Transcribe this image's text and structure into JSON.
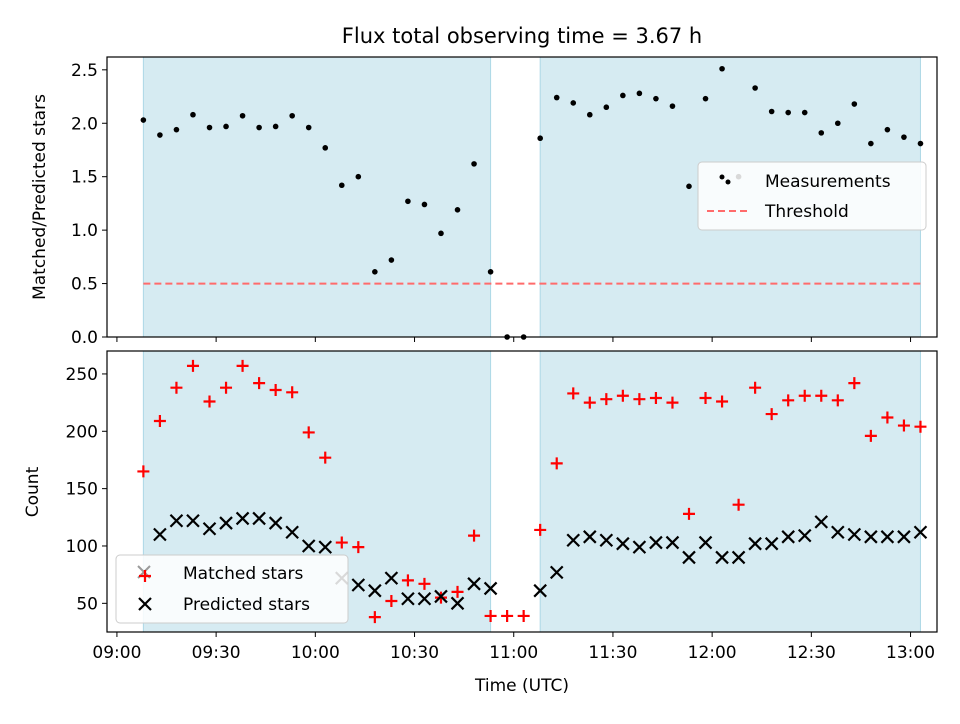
{
  "chart_data": [
    {
      "type": "scatter",
      "title": "Flux total observing time = 3.67 h",
      "xlabel": "",
      "ylabel": "Matched/Predicted stars",
      "ylim": [
        0,
        2.62
      ],
      "yticks": [
        0.0,
        0.5,
        1.0,
        1.5,
        2.0,
        2.5
      ],
      "ytick_labels": [
        "0.0",
        "0.5",
        "1.0",
        "1.5",
        "2.0",
        "2.5"
      ],
      "xlim": [
        "08:57",
        "13:08"
      ],
      "xticks": [
        "09:00",
        "09:30",
        "10:00",
        "10:30",
        "11:00",
        "11:30",
        "12:00",
        "12:30",
        "13:00"
      ],
      "shaded_spans": [
        [
          "09:08",
          "10:53"
        ],
        [
          "11:08",
          "13:03"
        ]
      ],
      "series": [
        {
          "name": "Measurements",
          "marker": "dot",
          "color": "#000000",
          "x": [
            "09:08",
            "09:13",
            "09:18",
            "09:23",
            "09:28",
            "09:33",
            "09:38",
            "09:43",
            "09:48",
            "09:53",
            "09:58",
            "10:03",
            "10:08",
            "10:13",
            "10:18",
            "10:23",
            "10:28",
            "10:33",
            "10:38",
            "10:43",
            "10:48",
            "10:53",
            "10:58",
            "11:03",
            "11:08",
            "11:13",
            "11:18",
            "11:23",
            "11:28",
            "11:33",
            "11:38",
            "11:43",
            "11:48",
            "11:53",
            "11:58",
            "12:03",
            "12:08",
            "12:13",
            "12:18",
            "12:23",
            "12:28",
            "12:33",
            "12:38",
            "12:43",
            "12:48",
            "12:53",
            "12:58",
            "13:03"
          ],
          "y": [
            2.03,
            1.89,
            1.94,
            2.08,
            1.96,
            1.97,
            2.07,
            1.96,
            1.97,
            2.07,
            1.96,
            1.77,
            1.42,
            1.5,
            0.61,
            0.72,
            1.27,
            1.24,
            0.97,
            1.19,
            1.62,
            0.61,
            0.0,
            0.0,
            1.86,
            2.24,
            2.19,
            2.08,
            2.15,
            2.26,
            2.28,
            2.23,
            2.16,
            1.41,
            2.23,
            2.51,
            1.5,
            2.33,
            2.11,
            2.1,
            2.1,
            1.91,
            2.0,
            2.18,
            1.81,
            1.94,
            1.87,
            1.81
          ]
        },
        {
          "name": "Threshold",
          "line": "dashed",
          "color": "#ff6b6b",
          "value": 0.5
        }
      ],
      "legend": "right"
    },
    {
      "type": "scatter",
      "title": "",
      "xlabel": "Time (UTC)",
      "ylabel": "Count",
      "ylim": [
        25,
        270
      ],
      "yticks": [
        50,
        100,
        150,
        200,
        250
      ],
      "ytick_labels": [
        "50",
        "100",
        "150",
        "200",
        "250"
      ],
      "xlim": [
        "08:57",
        "13:08"
      ],
      "xticks": [
        "09:00",
        "09:30",
        "10:00",
        "10:30",
        "11:00",
        "11:30",
        "12:00",
        "12:30",
        "13:00"
      ],
      "xtick_labels": [
        "09:00",
        "09:30",
        "10:00",
        "10:30",
        "11:00",
        "11:30",
        "12:00",
        "12:30",
        "13:00"
      ],
      "shaded_spans": [
        [
          "09:08",
          "10:53"
        ],
        [
          "11:08",
          "13:03"
        ]
      ],
      "series": [
        {
          "name": "Matched stars",
          "marker": "plus",
          "color": "#ff0000",
          "x": [
            "09:08",
            "09:13",
            "09:18",
            "09:23",
            "09:28",
            "09:33",
            "09:38",
            "09:43",
            "09:48",
            "09:53",
            "09:58",
            "10:03",
            "10:08",
            "10:13",
            "10:18",
            "10:23",
            "10:28",
            "10:33",
            "10:38",
            "10:43",
            "10:48",
            "10:53",
            "10:58",
            "11:03",
            "11:08",
            "11:13",
            "11:18",
            "11:23",
            "11:28",
            "11:33",
            "11:38",
            "11:43",
            "11:48",
            "11:53",
            "11:58",
            "12:03",
            "12:08",
            "12:13",
            "12:18",
            "12:23",
            "12:28",
            "12:33",
            "12:38",
            "12:43",
            "12:48",
            "12:53",
            "12:58",
            "13:03"
          ],
          "y": [
            165,
            209,
            238,
            257,
            226,
            238,
            257,
            242,
            236,
            234,
            199,
            177,
            103,
            99,
            38,
            52,
            70,
            67,
            55,
            60,
            109,
            39,
            39,
            39,
            114,
            172,
            233,
            225,
            228,
            231,
            228,
            229,
            225,
            128,
            229,
            226,
            136,
            238,
            215,
            227,
            231,
            231,
            227,
            242,
            196,
            212,
            205,
            204
          ]
        },
        {
          "name": "Predicted stars",
          "marker": "x",
          "color": "#000000",
          "x": [
            "09:13",
            "09:18",
            "09:23",
            "09:28",
            "09:33",
            "09:38",
            "09:43",
            "09:48",
            "09:53",
            "09:58",
            "10:03",
            "10:08",
            "10:13",
            "10:18",
            "10:23",
            "10:28",
            "10:33",
            "10:38",
            "10:43",
            "10:48",
            "10:53",
            "11:08",
            "11:13",
            "11:18",
            "11:23",
            "11:28",
            "11:33",
            "11:38",
            "11:43",
            "11:48",
            "11:53",
            "11:58",
            "12:03",
            "12:08",
            "12:13",
            "12:18",
            "12:23",
            "12:28",
            "12:33",
            "12:38",
            "12:43",
            "12:48",
            "12:53",
            "12:58",
            "13:03"
          ],
          "y": [
            110,
            122,
            122,
            115,
            120,
            124,
            124,
            120,
            112,
            100,
            99,
            72,
            66,
            61,
            72,
            54,
            54,
            56,
            50,
            67,
            63,
            61,
            77,
            105,
            108,
            105,
            102,
            99,
            103,
            103,
            90,
            103,
            90,
            90,
            102,
            102,
            108,
            109,
            121,
            112,
            110,
            108,
            108,
            108,
            112
          ]
        }
      ],
      "legend": "lower-left"
    }
  ]
}
